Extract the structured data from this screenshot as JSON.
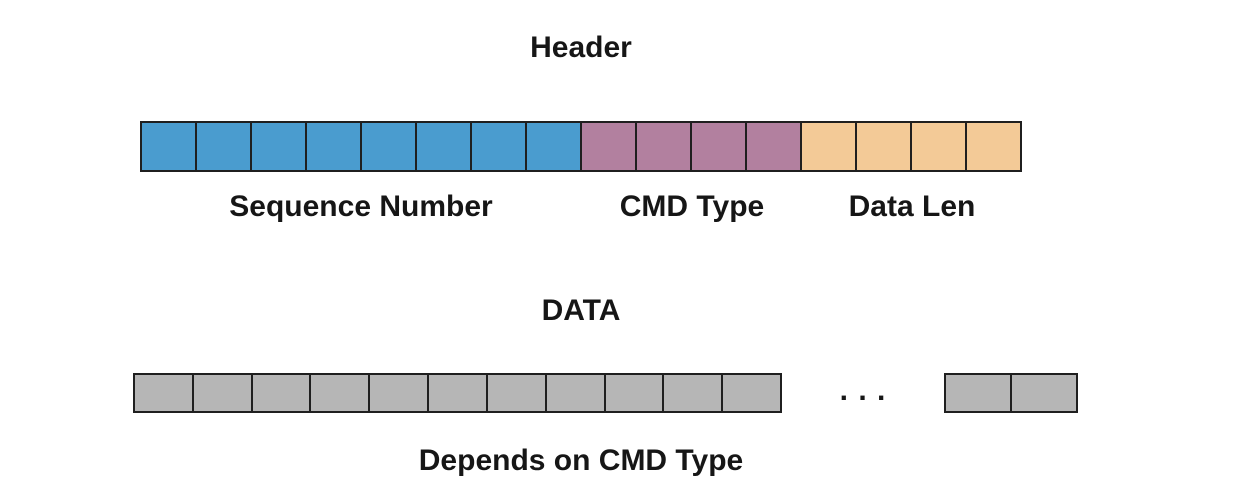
{
  "diagram": {
    "line_color": "#1f1f1f",
    "header_section": {
      "title": "Header",
      "fields": [
        {
          "label": "Sequence Number",
          "cells": 8,
          "color": "#4a9ccf"
        },
        {
          "label": "CMD Type",
          "cells": 4,
          "color": "#b2809f"
        },
        {
          "label": "Data Len",
          "cells": 4,
          "color": "#f3ca97"
        }
      ]
    },
    "data_section": {
      "title": "DATA",
      "main_cells": 11,
      "ellipsis": ". . .",
      "tail_cells": 2,
      "cell_color": "#b6b6b6",
      "caption": "Depends on CMD Type"
    }
  }
}
